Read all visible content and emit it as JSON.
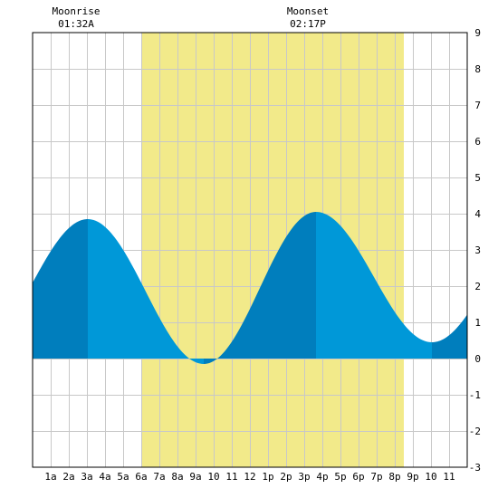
{
  "moon_events": [
    {
      "label": "Moonrise",
      "time": "01:32A",
      "hour": 1.53
    },
    {
      "label": "Moonset",
      "time": "02:17P",
      "hour": 14.28
    }
  ],
  "chart_data": {
    "type": "area",
    "x_tick_labels": [
      "1a",
      "2a",
      "3a",
      "4a",
      "5a",
      "6a",
      "7a",
      "8a",
      "9a",
      "10",
      "11",
      "12",
      "1p",
      "2p",
      "3p",
      "4p",
      "5p",
      "6p",
      "7p",
      "8p",
      "9p",
      "10",
      "11"
    ],
    "x_ticks": [
      1,
      2,
      3,
      4,
      5,
      6,
      7,
      8,
      9,
      10,
      11,
      12,
      13,
      14,
      15,
      16,
      17,
      18,
      19,
      20,
      21,
      22,
      23
    ],
    "xlim": [
      0,
      24
    ],
    "ylim": [
      -3,
      9
    ],
    "y_tick_labels": [
      "-3",
      "-2",
      "-1",
      "0",
      "1",
      "2",
      "3",
      "4",
      "5",
      "6",
      "7",
      "8",
      "9"
    ],
    "grid": true,
    "daylight": {
      "start": 6.0,
      "end": 20.5
    },
    "tide_extrema": [
      {
        "hour": -3.2,
        "height": 0.2
      },
      {
        "hour": 3.05,
        "height": 3.85
      },
      {
        "hour": 9.45,
        "height": -0.15
      },
      {
        "hour": 15.65,
        "height": 4.05
      },
      {
        "hour": 22.05,
        "height": 0.45
      },
      {
        "hour": 28.3,
        "height": 3.9
      }
    ],
    "colors": {
      "daylight": "#f2ea8a",
      "rising": "#007ebd",
      "falling": "#0098d8",
      "grid": "#c8c8c8",
      "frame": "#000000",
      "background": "#ffffff"
    }
  }
}
